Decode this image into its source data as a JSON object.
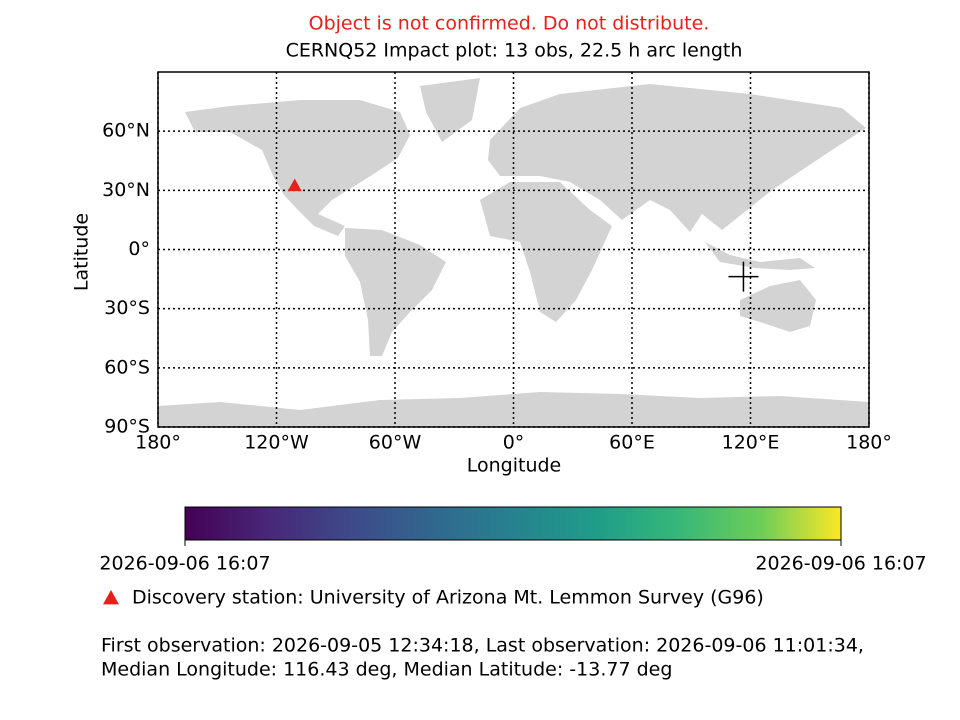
{
  "chart_data": {
    "type": "map",
    "warning": "Object is not confirmed. Do not distribute.",
    "warning_color": "#e8201c",
    "title": "CERNQ52 Impact plot: 13 obs, 22.5 h arc length",
    "xlabel": "Longitude",
    "ylabel": "Latitude",
    "xlim": [
      -180,
      180
    ],
    "ylim": [
      -90,
      90
    ],
    "xticks": [
      {
        "value": -180,
        "label": "180°"
      },
      {
        "value": -120,
        "label": "120°W"
      },
      {
        "value": -60,
        "label": "60°W"
      },
      {
        "value": 0,
        "label": "0°"
      },
      {
        "value": 60,
        "label": "60°E"
      },
      {
        "value": 120,
        "label": "120°E"
      },
      {
        "value": 180,
        "label": "180°"
      }
    ],
    "yticks": [
      {
        "value": 60,
        "label": "60°N"
      },
      {
        "value": 30,
        "label": "30°N"
      },
      {
        "value": 0,
        "label": "0°"
      },
      {
        "value": -30,
        "label": "30°S"
      },
      {
        "value": -60,
        "label": "60°S"
      },
      {
        "value": -90,
        "label": "90°S"
      }
    ],
    "grid": true,
    "series": [
      {
        "name": "Discovery station: University of Arizona Mt. Lemmon Survey (G96)",
        "marker": "triangle",
        "color": "#e8201c",
        "x": [
          -110.79
        ],
        "y": [
          32.44
        ]
      }
    ],
    "impact": {
      "marker": "plus",
      "color": "#000000",
      "x": [
        116.43
      ],
      "y": [
        -13.77
      ]
    },
    "colorbar": {
      "colormap": "viridis",
      "ticks": [
        "2026-09-06 16:07",
        "2026-09-06 16:07"
      ]
    },
    "notes": [
      "First observation: 2026-09-05 12:34:18, Last observation: 2026-09-06 11:01:34,",
      "Median Longitude: 116.43 deg, Median Latitude: -13.77 deg"
    ]
  }
}
